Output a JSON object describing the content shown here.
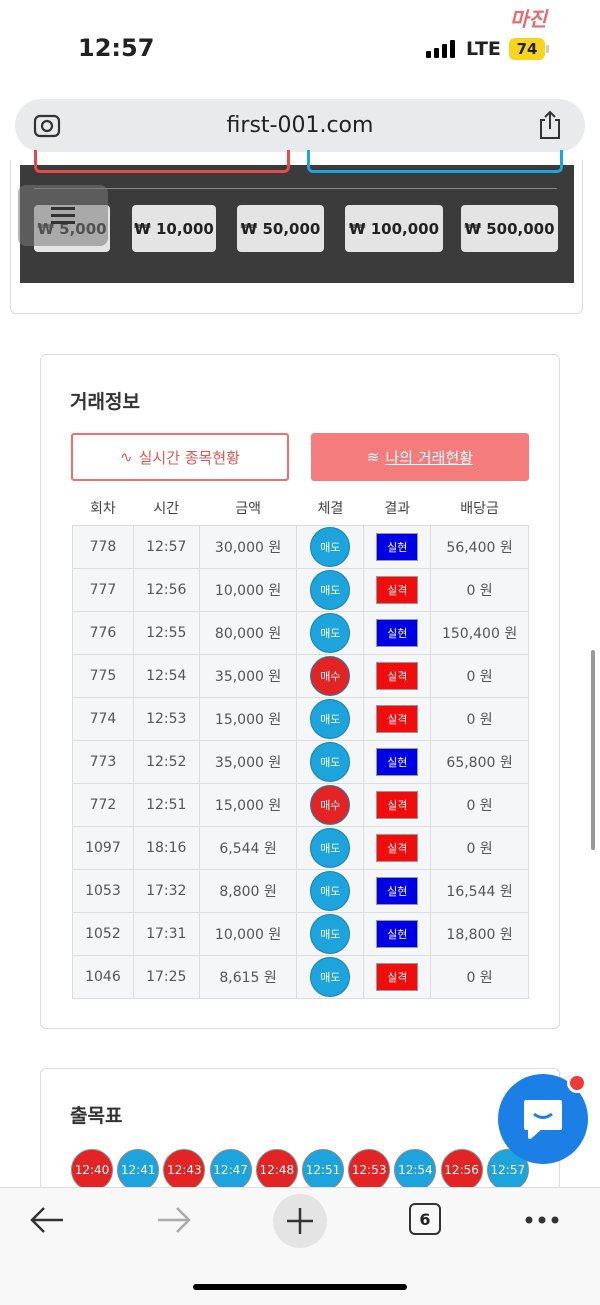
{
  "status_bar": {
    "time": "12:57",
    "network": "LTE",
    "battery": "74"
  },
  "watermark": "마진",
  "browser": {
    "url": "first-001.com"
  },
  "amount_buttons": [
    "₩ 5,000",
    "₩ 10,000",
    "₩ 50,000",
    "₩ 100,000",
    "₩ 500,000"
  ],
  "trade_info": {
    "title": "거래정보",
    "tabs": [
      "실시간 종목현황",
      "나의 거래현황"
    ],
    "table": {
      "headers": [
        "회차",
        "시간",
        "금액",
        "체결",
        "결과",
        "배당금"
      ],
      "rows": [
        {
          "round": "778",
          "time": "12:57",
          "amount": "30,000 원",
          "side": {
            "label": "매도",
            "color": "#1ea4dd"
          },
          "result": {
            "label": "실현",
            "color": "#0000e6"
          },
          "payout": "56,400 원"
        },
        {
          "round": "777",
          "time": "12:56",
          "amount": "10,000 원",
          "side": {
            "label": "매도",
            "color": "#1ea4dd"
          },
          "result": {
            "label": "실격",
            "color": "#f20d0d"
          },
          "payout": "0 원"
        },
        {
          "round": "776",
          "time": "12:55",
          "amount": "80,000 원",
          "side": {
            "label": "매도",
            "color": "#1ea4dd"
          },
          "result": {
            "label": "실현",
            "color": "#0000e6"
          },
          "payout": "150,400 원"
        },
        {
          "round": "775",
          "time": "12:54",
          "amount": "35,000 원",
          "side": {
            "label": "매수",
            "color": "#e22424"
          },
          "result": {
            "label": "실격",
            "color": "#f20d0d"
          },
          "payout": "0 원"
        },
        {
          "round": "774",
          "time": "12:53",
          "amount": "15,000 원",
          "side": {
            "label": "매도",
            "color": "#1ea4dd"
          },
          "result": {
            "label": "실격",
            "color": "#f20d0d"
          },
          "payout": "0 원"
        },
        {
          "round": "773",
          "time": "12:52",
          "amount": "35,000 원",
          "side": {
            "label": "매도",
            "color": "#1ea4dd"
          },
          "result": {
            "label": "실현",
            "color": "#0000e6"
          },
          "payout": "65,800 원"
        },
        {
          "round": "772",
          "time": "12:51",
          "amount": "15,000 원",
          "side": {
            "label": "매수",
            "color": "#e22424"
          },
          "result": {
            "label": "실격",
            "color": "#f20d0d"
          },
          "payout": "0 원"
        },
        {
          "round": "1097",
          "time": "18:16",
          "amount": "6,544 원",
          "side": {
            "label": "매도",
            "color": "#1ea4dd"
          },
          "result": {
            "label": "실격",
            "color": "#f20d0d"
          },
          "payout": "0 원"
        },
        {
          "round": "1053",
          "time": "17:32",
          "amount": "8,800 원",
          "side": {
            "label": "매도",
            "color": "#1ea4dd"
          },
          "result": {
            "label": "실현",
            "color": "#0000e6"
          },
          "payout": "16,544 원"
        },
        {
          "round": "1052",
          "time": "17:31",
          "amount": "10,000 원",
          "side": {
            "label": "매도",
            "color": "#1ea4dd"
          },
          "result": {
            "label": "실현",
            "color": "#0000e6"
          },
          "payout": "18,800 원"
        },
        {
          "round": "1046",
          "time": "17:25",
          "amount": "8,615 원",
          "side": {
            "label": "매도",
            "color": "#1ea4dd"
          },
          "result": {
            "label": "실격",
            "color": "#f20d0d"
          },
          "payout": "0 원"
        }
      ]
    }
  },
  "history": {
    "title": "출목표",
    "items": [
      {
        "time": "12:40",
        "color": "#e22424"
      },
      {
        "time": "12:41",
        "color": "#1ea4dd"
      },
      {
        "time": "12:43",
        "color": "#e22424"
      },
      {
        "time": "12:47",
        "color": "#1ea4dd"
      },
      {
        "time": "12:48",
        "color": "#e22424"
      },
      {
        "time": "12:51",
        "color": "#1ea4dd"
      },
      {
        "time": "12:53",
        "color": "#e22424"
      },
      {
        "time": "12:54",
        "color": "#1ea4dd"
      },
      {
        "time": "12:56",
        "color": "#e22424"
      },
      {
        "time": "12:57",
        "color": "#1ea4dd"
      }
    ]
  },
  "bottom_bar": {
    "tab_count": "6"
  }
}
